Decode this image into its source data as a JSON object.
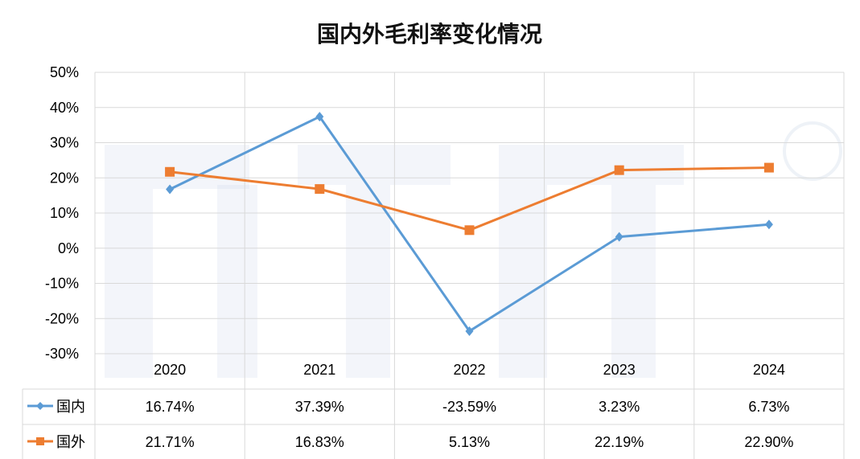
{
  "chart_data": {
    "type": "line",
    "title": "国内外毛利率变化情况",
    "categories": [
      "2020",
      "2021",
      "2022",
      "2023",
      "2024"
    ],
    "y_ticks": [
      "50%",
      "40%",
      "30%",
      "20%",
      "10%",
      "0%",
      "-10%",
      "-20%",
      "-30%"
    ],
    "ylim": [
      -30,
      50
    ],
    "grid": true,
    "legend": "data-table",
    "series": [
      {
        "name": "国内",
        "color": "#5b9bd5",
        "marker": "diamond",
        "values": [
          16.74,
          37.39,
          -23.59,
          3.23,
          6.73
        ],
        "labels": [
          "16.74%",
          "37.39%",
          "-23.59%",
          "3.23%",
          "6.73%"
        ]
      },
      {
        "name": "国外",
        "color": "#ed7d31",
        "marker": "square",
        "values": [
          21.71,
          16.83,
          5.13,
          22.19,
          22.9
        ],
        "labels": [
          "21.71%",
          "16.83%",
          "5.13%",
          "22.19%",
          "22.90%"
        ]
      }
    ]
  }
}
